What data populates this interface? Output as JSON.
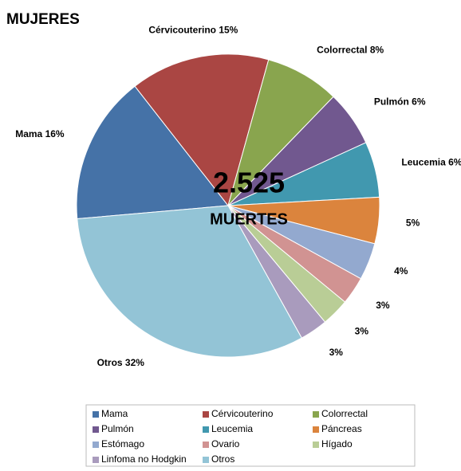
{
  "chart_data": {
    "type": "pie",
    "title": "MUJERES",
    "center_label": "2.525",
    "center_sublabel": "MUERTES",
    "categories": [
      "Mama",
      "Cérvicouterino",
      "Colorrectal",
      "Pulmón",
      "Leucemia",
      "Páncreas",
      "Estómago",
      "Ovario",
      "Hígado",
      "Linfoma no Hodgkin",
      "Otros"
    ],
    "values": [
      16,
      15,
      8,
      6,
      6,
      5,
      4,
      3,
      3,
      3,
      32
    ],
    "value_labels": [
      "Mama 16%",
      "Cérvicouterino 15%",
      "Colorrectal 8%",
      "Pulmón 6%",
      "Leucemia 6%",
      "5%",
      "4%",
      "3%",
      "3%",
      "3%",
      "Otros 32%"
    ],
    "colors": [
      "#4572a7",
      "#aa4643",
      "#89a54e",
      "#71588f",
      "#4198af",
      "#db843d",
      "#93a9cf",
      "#d19392",
      "#b9cd96",
      "#a99bbd",
      "#93c4d6"
    ],
    "legend": "bottom"
  }
}
